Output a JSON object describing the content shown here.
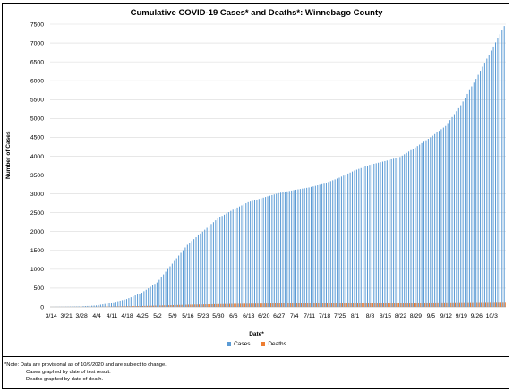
{
  "chart_data": {
    "type": "bar",
    "title": "Cumulative COVID-19 Cases* and Deaths*: Winnebago County",
    "xlabel": "Date*",
    "ylabel": "Number of Cases",
    "ylim": [
      0,
      7500
    ],
    "yticks": [
      0,
      500,
      1000,
      1500,
      2000,
      2500,
      3000,
      3500,
      4000,
      4500,
      5000,
      5500,
      6000,
      6500,
      7000,
      7500
    ],
    "grid": "horizontal",
    "legend_position": "bottom",
    "x_tick_labels": [
      "3/14",
      "3/21",
      "3/28",
      "4/4",
      "4/11",
      "4/18",
      "4/25",
      "5/2",
      "5/9",
      "5/16",
      "5/23",
      "5/30",
      "6/6",
      "6/13",
      "6/20",
      "6/27",
      "7/4",
      "7/11",
      "7/18",
      "7/25",
      "8/1",
      "8/8",
      "8/15",
      "8/22",
      "8/29",
      "9/5",
      "9/12",
      "9/19",
      "9/26",
      "10/3"
    ],
    "x_start": "3/14",
    "x_end": "10/9",
    "series": [
      {
        "name": "Cases",
        "color": "#5b9bd5",
        "anchors": [
          [
            "3/14",
            0
          ],
          [
            "3/21",
            5
          ],
          [
            "3/28",
            15
          ],
          [
            "4/4",
            40
          ],
          [
            "4/11",
            110
          ],
          [
            "4/18",
            210
          ],
          [
            "4/25",
            380
          ],
          [
            "5/2",
            650
          ],
          [
            "5/9",
            1150
          ],
          [
            "5/16",
            1650
          ],
          [
            "5/23",
            2000
          ],
          [
            "5/30",
            2350
          ],
          [
            "6/6",
            2580
          ],
          [
            "6/13",
            2780
          ],
          [
            "6/20",
            2900
          ],
          [
            "6/27",
            3020
          ],
          [
            "7/4",
            3100
          ],
          [
            "7/11",
            3170
          ],
          [
            "7/18",
            3270
          ],
          [
            "7/25",
            3430
          ],
          [
            "8/1",
            3620
          ],
          [
            "8/8",
            3770
          ],
          [
            "8/15",
            3870
          ],
          [
            "8/22",
            3980
          ],
          [
            "8/29",
            4230
          ],
          [
            "9/5",
            4500
          ],
          [
            "9/12",
            4800
          ],
          [
            "9/19",
            5350
          ],
          [
            "9/26",
            6050
          ],
          [
            "10/3",
            6800
          ],
          [
            "10/9",
            7450
          ]
        ]
      },
      {
        "name": "Deaths",
        "color": "#ed7d31",
        "anchors": [
          [
            "3/14",
            0
          ],
          [
            "4/4",
            2
          ],
          [
            "4/25",
            25
          ],
          [
            "5/16",
            60
          ],
          [
            "6/6",
            85
          ],
          [
            "7/4",
            100
          ],
          [
            "8/1",
            110
          ],
          [
            "9/5",
            120
          ],
          [
            "10/9",
            135
          ]
        ]
      }
    ],
    "note_lines": [
      "*Note: Data are provisional as of 10/9/2020 and are subject to change.",
      "Cases graphed by date of test result.",
      "Deaths graphed by date of death."
    ]
  }
}
